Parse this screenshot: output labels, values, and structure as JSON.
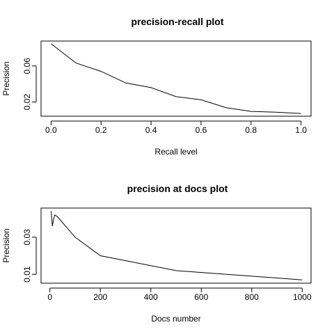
{
  "chart_data": [
    {
      "type": "line",
      "title": "precision-recall plot",
      "xlabel": "Recall level",
      "ylabel": "Precision",
      "xlim": [
        -0.04,
        1.04
      ],
      "ylim": [
        0.0043,
        0.0876
      ],
      "x_ticks": [
        0.0,
        0.2,
        0.4,
        0.6,
        0.8,
        1.0
      ],
      "x_tick_labels": [
        "0.0",
        "0.2",
        "0.4",
        "0.6",
        "0.8",
        "1.0"
      ],
      "y_ticks": [
        0.02,
        0.06
      ],
      "y_tick_labels": [
        "0.02",
        "0.06"
      ],
      "grid": false,
      "x": [
        0.0,
        0.1,
        0.2,
        0.3,
        0.4,
        0.5,
        0.6,
        0.7,
        0.8,
        0.9,
        1.0
      ],
      "y": [
        0.0846,
        0.0632,
        0.054,
        0.0411,
        0.036,
        0.026,
        0.0225,
        0.0138,
        0.0096,
        0.0088,
        0.0073
      ]
    },
    {
      "type": "line",
      "title": "precision at docs plot",
      "xlabel": "Docs number",
      "ylabel": "Precision",
      "xlim": [
        -35,
        1035
      ],
      "ylim": [
        0.0052,
        0.0457
      ],
      "x_ticks": [
        0,
        200,
        400,
        600,
        800,
        1000
      ],
      "x_tick_labels": [
        "0",
        "200",
        "400",
        "600",
        "800",
        "1000"
      ],
      "y_ticks": [
        0.01,
        0.03
      ],
      "y_tick_labels": [
        "0.01",
        "0.03"
      ],
      "grid": false,
      "x": [
        5,
        10,
        15,
        20,
        30,
        100,
        200,
        500,
        1000
      ],
      "y": [
        0.044,
        0.036,
        0.04,
        0.042,
        0.041,
        0.03,
        0.02,
        0.012,
        0.007
      ]
    }
  ]
}
